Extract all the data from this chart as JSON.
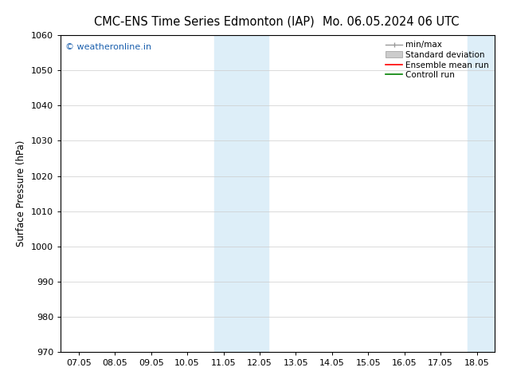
{
  "title_left": "CMC-ENS Time Series Edmonton (IAP)",
  "title_right": "Mo. 06.05.2024 06 UTC",
  "ylabel": "Surface Pressure (hPa)",
  "ylim": [
    970,
    1060
  ],
  "yticks": [
    970,
    980,
    990,
    1000,
    1010,
    1020,
    1030,
    1040,
    1050,
    1060
  ],
  "xtick_labels": [
    "07.05",
    "08.05",
    "09.05",
    "10.05",
    "11.05",
    "12.05",
    "13.05",
    "14.05",
    "15.05",
    "16.05",
    "17.05",
    "18.05"
  ],
  "x_positions": [
    0,
    1,
    2,
    3,
    4,
    5,
    6,
    7,
    8,
    9,
    10,
    11
  ],
  "xlim": [
    -0.5,
    11.5
  ],
  "shaded_bands": [
    {
      "x_start": 3.75,
      "x_end": 5.25
    },
    {
      "x_start": 10.75,
      "x_end": 11.5
    }
  ],
  "shaded_color": "#ddeef8",
  "watermark_text": "© weatheronline.in",
  "watermark_color": "#1a5fad",
  "bg_color": "#ffffff",
  "grid_color": "#cccccc",
  "title_fontsize": 10.5,
  "label_fontsize": 8.5,
  "tick_fontsize": 8,
  "legend_fontsize": 7.5
}
